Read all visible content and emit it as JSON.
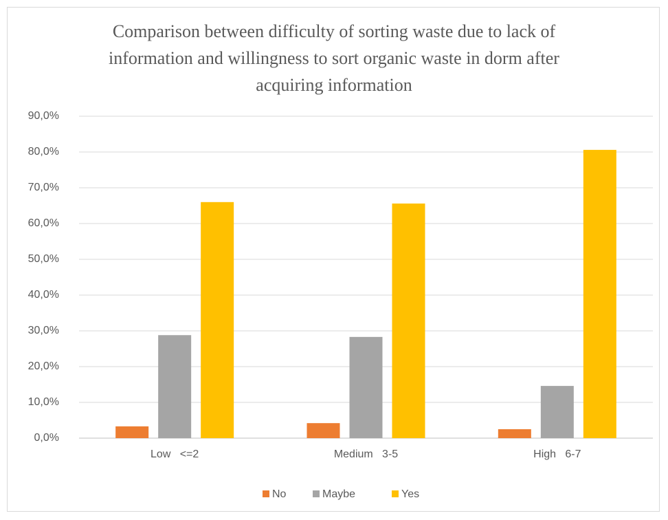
{
  "chart_data": {
    "type": "bar",
    "title": "Comparison between difficulty of sorting waste due to lack of information and willingness to sort organic waste in dorm after acquiring information",
    "categories": [
      "Low   <=2",
      "Medium   3-5",
      "High   6-7"
    ],
    "series": [
      {
        "name": "No",
        "color": "#ED7D31",
        "values": [
          3.3,
          4.2,
          2.5
        ]
      },
      {
        "name": "Maybe",
        "color": "#A5A5A5",
        "values": [
          28.8,
          28.3,
          14.6
        ]
      },
      {
        "name": "Yes",
        "color": "#FFC000",
        "values": [
          66.0,
          65.6,
          80.6
        ]
      }
    ],
    "ylim": [
      0,
      90
    ],
    "yticks": [
      {
        "value": 0,
        "label": "0,0%"
      },
      {
        "value": 10,
        "label": "10,0%"
      },
      {
        "value": 20,
        "label": "20,0%"
      },
      {
        "value": 30,
        "label": "30,0%"
      },
      {
        "value": 40,
        "label": "40,0%"
      },
      {
        "value": 50,
        "label": "50,0%"
      },
      {
        "value": 60,
        "label": "60,0%"
      },
      {
        "value": 70,
        "label": "70,0%"
      },
      {
        "value": 80,
        "label": "80,0%"
      },
      {
        "value": 90,
        "label": "90,0%"
      }
    ],
    "grid": true,
    "legend": "bottom"
  }
}
